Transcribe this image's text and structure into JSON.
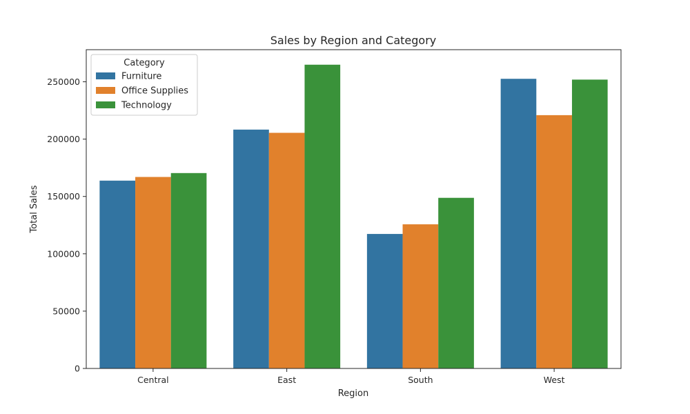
{
  "chart_data": {
    "type": "bar",
    "title": "Sales by Region and Category",
    "xlabel": "Region",
    "ylabel": "Total Sales",
    "categories": [
      "Central",
      "East",
      "South",
      "West"
    ],
    "series": [
      {
        "name": "Furniture",
        "color": "#3274a1",
        "values": [
          163800,
          208300,
          117300,
          252600
        ]
      },
      {
        "name": "Office Supplies",
        "color": "#e1812c",
        "values": [
          167000,
          205500,
          125700,
          220900
        ]
      },
      {
        "name": "Technology",
        "color": "#3a923a",
        "values": [
          170400,
          264900,
          148800,
          251900
        ]
      }
    ],
    "ylim": [
      0,
      278000
    ],
    "yticks": [
      0,
      50000,
      100000,
      150000,
      200000,
      250000
    ],
    "ytick_labels": [
      "0",
      "50000",
      "100000",
      "150000",
      "200000",
      "250000"
    ],
    "legend": {
      "title": "Category",
      "placement": "top-left"
    },
    "grid": false
  }
}
